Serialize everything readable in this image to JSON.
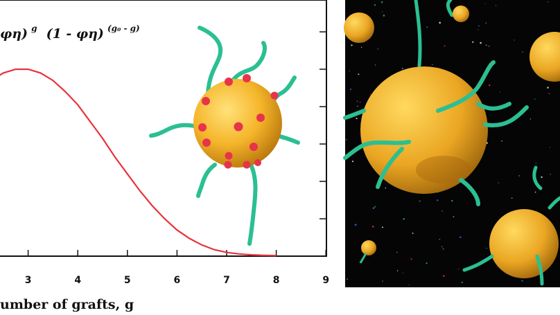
{
  "chart_data": {
    "type": "line",
    "xlabel": "umber of grafts, g",
    "ylabel": "",
    "xlim": [
      2,
      9
    ],
    "ylim": [
      0,
      1
    ],
    "x_ticks": [
      "3",
      "4",
      "5",
      "6",
      "7",
      "8",
      "9"
    ],
    "formula": {
      "part1": "φη)",
      "sup1": "g",
      "part2": "(1 - φη)",
      "sup2": "(g₀ - g)"
    },
    "series": [
      {
        "color": "#e8323a",
        "x": [
          2.0,
          2.25,
          2.5,
          2.75,
          3.0,
          3.25,
          3.5,
          3.75,
          4.0,
          4.25,
          4.5,
          4.75,
          5.0,
          5.25,
          5.5,
          5.75,
          6.0,
          6.25,
          6.5,
          6.75,
          7.0,
          7.25,
          7.5,
          7.75,
          8.0
        ],
        "y": [
          0.88,
          0.94,
          0.98,
          1.0,
          1.0,
          0.98,
          0.94,
          0.88,
          0.81,
          0.72,
          0.63,
          0.53,
          0.44,
          0.35,
          0.27,
          0.2,
          0.14,
          0.095,
          0.06,
          0.035,
          0.02,
          0.012,
          0.007,
          0.004,
          0.003
        ]
      }
    ]
  },
  "colors": {
    "curve": "#e8323a",
    "sphere": "#f5b52a",
    "sphere_shadow": "#c98710",
    "graft": "#2bbf92",
    "site": "#e8334a",
    "panel_bg": "#050505"
  },
  "icons": {
    "inset": "grafted-particle-illustration",
    "right_panel": "grafted-particles-render"
  }
}
